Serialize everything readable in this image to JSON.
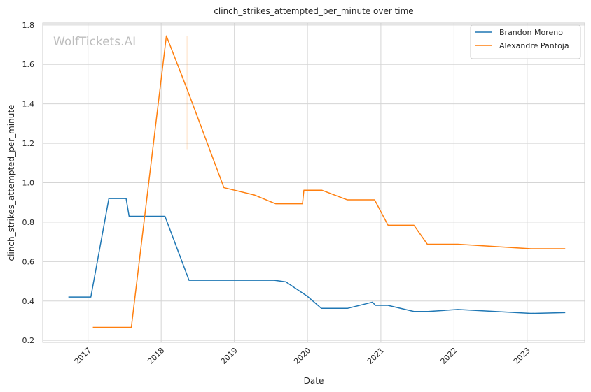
{
  "chart_data": {
    "type": "line",
    "title": "clinch_strikes_attempted_per_minute over time",
    "xlabel": "Date",
    "ylabel": "clinch_strikes_attempted_per_minute",
    "watermark": "WolfTickets.AI",
    "xlim": [
      "2016-05-20",
      "2023-10-15"
    ],
    "ylim": [
      0.19,
      1.81
    ],
    "x_ticks": [
      "2017-01-01",
      "2018-01-01",
      "2019-01-01",
      "2020-01-01",
      "2021-01-01",
      "2022-01-01",
      "2023-01-01"
    ],
    "x_tick_labels": [
      "2017",
      "2018",
      "2019",
      "2020",
      "2021",
      "2022",
      "2023"
    ],
    "y_ticks": [
      0.2,
      0.4,
      0.6,
      0.8,
      1.0,
      1.2,
      1.4,
      1.6,
      1.8
    ],
    "y_tick_labels": [
      "0.2",
      "0.4",
      "0.6",
      "0.8",
      "1.0",
      "1.2",
      "1.4",
      "1.6",
      "1.8"
    ],
    "grid": true,
    "legend_position": "top-right",
    "series": [
      {
        "name": "Brandon Moreno",
        "color": "#1f77b4",
        "points": [
          [
            "2016-09-25",
            0.42
          ],
          [
            "2017-01-15",
            0.42
          ],
          [
            "2017-04-15",
            0.92
          ],
          [
            "2017-07-10",
            0.92
          ],
          [
            "2017-07-25",
            0.83
          ],
          [
            "2018-01-20",
            0.83
          ],
          [
            "2018-05-20",
            0.505
          ],
          [
            "2019-07-20",
            0.505
          ],
          [
            "2019-09-15",
            0.497
          ],
          [
            "2019-12-15",
            0.435
          ],
          [
            "2019-12-30",
            0.425
          ],
          [
            "2020-03-10",
            0.363
          ],
          [
            "2020-07-20",
            0.363
          ],
          [
            "2020-11-20",
            0.394
          ],
          [
            "2020-12-05",
            0.378
          ],
          [
            "2021-02-05",
            0.378
          ],
          [
            "2021-06-15",
            0.347
          ],
          [
            "2021-08-25",
            0.347
          ],
          [
            "2022-01-20",
            0.357
          ],
          [
            "2023-01-20",
            0.337
          ],
          [
            "2023-07-10",
            0.341
          ]
        ]
      },
      {
        "name": "Alexandre Pantoja",
        "color": "#ff7f0e",
        "points": [
          [
            "2017-01-25",
            0.266
          ],
          [
            "2017-08-05",
            0.266
          ],
          [
            "2018-01-27",
            1.745
          ],
          [
            "2018-05-12",
            1.47
          ],
          [
            "2018-11-10",
            0.975
          ],
          [
            "2019-04-10",
            0.938
          ],
          [
            "2019-07-27",
            0.893
          ],
          [
            "2019-12-07",
            0.893
          ],
          [
            "2019-12-14",
            0.962
          ],
          [
            "2020-03-12",
            0.962
          ],
          [
            "2020-07-18",
            0.913
          ],
          [
            "2020-12-01",
            0.913
          ],
          [
            "2021-02-06",
            0.784
          ],
          [
            "2021-06-15",
            0.784
          ],
          [
            "2021-08-21",
            0.688
          ],
          [
            "2022-01-20",
            0.688
          ],
          [
            "2023-01-20",
            0.665
          ],
          [
            "2023-07-10",
            0.665
          ]
        ]
      }
    ],
    "annotations": [
      {
        "type": "faint-vertical-line",
        "color": "#ff7f0e",
        "x": "2018-05-10",
        "y": [
          1.17,
          1.745
        ]
      }
    ]
  }
}
